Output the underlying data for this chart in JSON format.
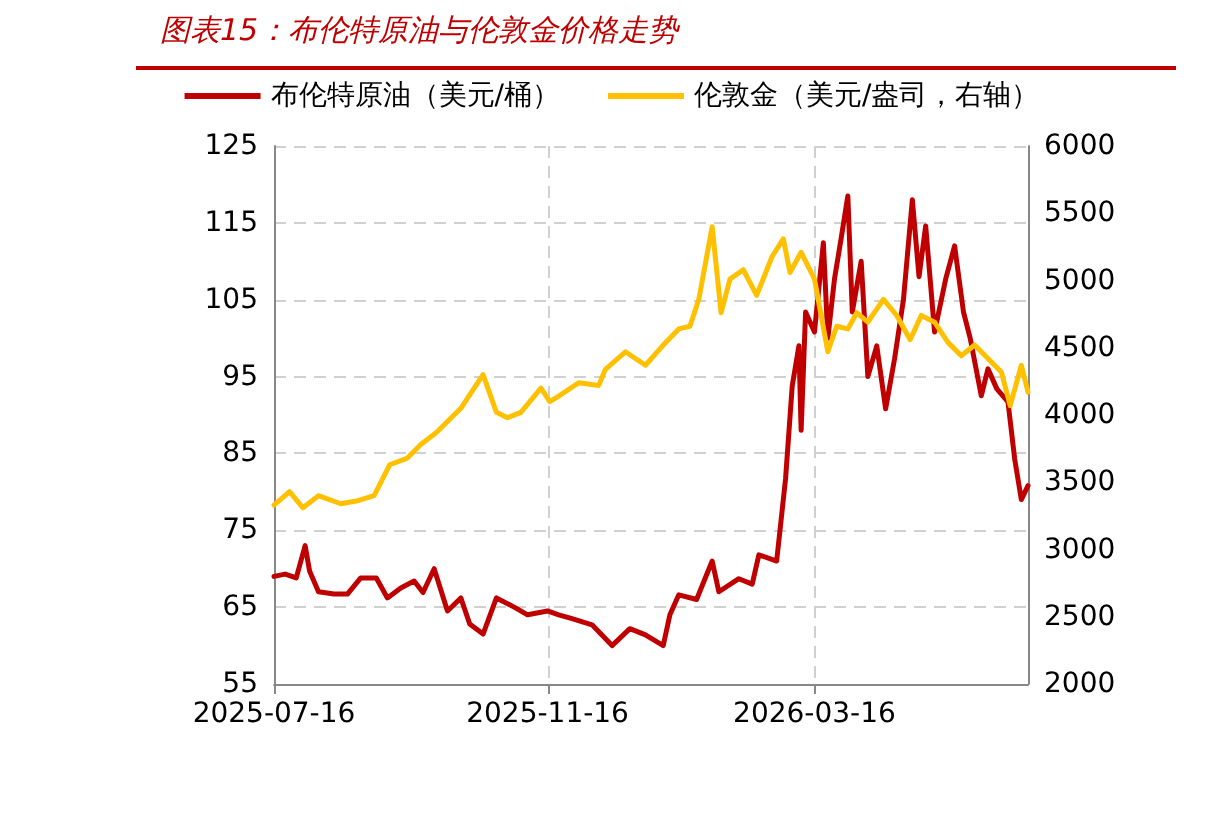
{
  "chart_data": {
    "type": "line",
    "title": "图表15：布伦特原油与伦敦金价格走势",
    "xlim": [
      "2025-07-16",
      "2026-06-20"
    ],
    "xticks": [
      "2025-07-16",
      "2025-11-16",
      "2026-03-16"
    ],
    "ylim": [
      55,
      125
    ],
    "yticks": [
      55,
      65,
      75,
      85,
      95,
      105,
      115,
      125
    ],
    "y2lim": [
      2000,
      6000
    ],
    "y2ticks": [
      2000,
      2500,
      3000,
      3500,
      4000,
      4500,
      5000,
      5500,
      6000
    ],
    "grid": true,
    "legend": "top",
    "marker": "none",
    "line_style": "solid",
    "series": [
      {
        "name": "布伦特原油（美元/桶）",
        "color": "#c00000",
        "x": [
          "2025-07-16",
          "2025-07-21",
          "2025-07-26",
          "2025-07-30",
          "2025-08-01",
          "2025-08-05",
          "2025-08-12",
          "2025-08-18",
          "2025-08-24",
          "2025-08-31",
          "2025-09-05",
          "2025-09-11",
          "2025-09-17",
          "2025-09-21",
          "2025-09-26",
          "2025-10-02",
          "2025-10-08",
          "2025-10-12",
          "2025-10-18",
          "2025-10-24",
          "2025-11-01",
          "2025-11-07",
          "2025-11-16",
          "2025-11-21",
          "2025-11-27",
          "2025-12-06",
          "2025-12-15",
          "2025-12-23",
          "2025-12-30",
          "2026-01-07",
          "2026-01-10",
          "2026-01-14",
          "2026-01-22",
          "2026-01-29",
          "2026-02-01",
          "2026-02-10",
          "2026-02-16",
          "2026-02-19",
          "2026-02-27",
          "2026-03-03",
          "2026-03-06",
          "2026-03-09",
          "2026-03-10",
          "2026-03-12",
          "2026-03-16",
          "2026-03-20",
          "2026-03-22",
          "2026-03-25",
          "2026-03-28",
          "2026-03-31",
          "2026-04-02",
          "2026-04-06",
          "2026-04-09",
          "2026-04-13",
          "2026-04-17",
          "2026-04-21",
          "2026-04-25",
          "2026-04-29",
          "2026-05-02",
          "2026-05-05",
          "2026-05-09",
          "2026-05-14",
          "2026-05-18",
          "2026-05-22",
          "2026-05-25",
          "2026-05-30",
          "2026-06-02",
          "2026-06-06",
          "2026-06-11",
          "2026-06-14",
          "2026-06-17",
          "2026-06-20"
        ],
        "values": [
          69,
          69.3,
          68.8,
          73,
          69.7,
          67,
          66.7,
          66.7,
          68.8,
          68.8,
          66.2,
          67.5,
          68.4,
          66.9,
          70,
          64.5,
          66.2,
          62.8,
          61.5,
          66.2,
          65,
          64,
          64.5,
          64,
          63.5,
          62.7,
          60,
          62.2,
          61.4,
          60,
          64,
          66.6,
          66,
          71,
          67,
          68.7,
          68,
          71.8,
          71,
          81.7,
          93.8,
          99,
          88,
          103.4,
          100.8,
          112.4,
          100,
          107.7,
          113,
          118.5,
          103.4,
          110,
          95,
          99,
          90.8,
          97.3,
          105,
          118,
          108,
          114.6,
          100.8,
          107.7,
          112,
          103.4,
          100,
          92.5,
          96,
          93.4,
          91.7,
          84.3,
          79,
          80.8
        ]
      },
      {
        "name": "伦敦金（美元/盎司，右轴）",
        "color": "#ffc000",
        "axis": "y2",
        "x": [
          "2025-07-16",
          "2025-07-23",
          "2025-07-29",
          "2025-08-05",
          "2025-08-15",
          "2025-08-22",
          "2025-08-30",
          "2025-09-06",
          "2025-09-14",
          "2025-09-20",
          "2025-09-27",
          "2025-10-08",
          "2025-10-18",
          "2025-10-24",
          "2025-10-29",
          "2025-11-04",
          "2025-11-13",
          "2025-11-17",
          "2025-11-21",
          "2025-11-30",
          "2025-12-09",
          "2025-12-12",
          "2025-12-21",
          "2025-12-30",
          "2026-01-07",
          "2026-01-14",
          "2026-01-19",
          "2026-01-23",
          "2026-01-29",
          "2026-02-02",
          "2026-02-06",
          "2026-02-12",
          "2026-02-18",
          "2026-02-25",
          "2026-03-02",
          "2026-03-05",
          "2026-03-10",
          "2026-03-16",
          "2026-03-22",
          "2026-03-26",
          "2026-03-31",
          "2026-04-04",
          "2026-04-09",
          "2026-04-16",
          "2026-04-22",
          "2026-04-28",
          "2026-05-03",
          "2026-05-09",
          "2026-05-15",
          "2026-05-21",
          "2026-05-27",
          "2026-06-02",
          "2026-06-08",
          "2026-06-12",
          "2026-06-17",
          "2026-06-20"
        ],
        "values": [
          3330,
          3430,
          3310,
          3400,
          3340,
          3360,
          3400,
          3630,
          3680,
          3780,
          3870,
          4050,
          4300,
          4020,
          3980,
          4020,
          4200,
          4100,
          4140,
          4240,
          4220,
          4340,
          4470,
          4370,
          4520,
          4640,
          4660,
          4860,
          5400,
          4760,
          5010,
          5080,
          4890,
          5180,
          5310,
          5060,
          5210,
          5010,
          4470,
          4660,
          4640,
          4760,
          4690,
          4860,
          4740,
          4560,
          4740,
          4690,
          4540,
          4440,
          4520,
          4420,
          4320,
          4070,
          4370,
          4170
        ]
      }
    ]
  }
}
